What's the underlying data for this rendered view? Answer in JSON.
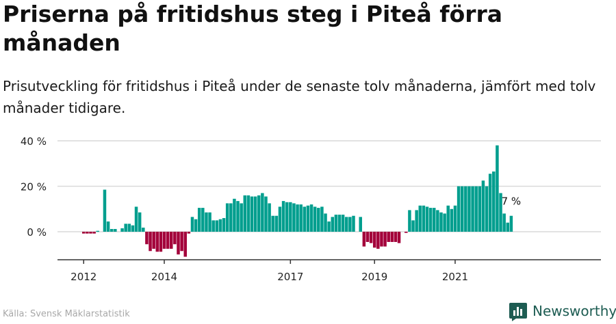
{
  "title": "Priserna på fritidshus steg i Piteå förra månaden",
  "subtitle": "Prisutveckling för fritidshus i Piteå under de senaste tolv månaderna, jämfört med tolv månader tidigare.",
  "source": "Källa: Svensk Mäklarstatistik",
  "brand": {
    "name": "Newsworthy",
    "logo_icon": "newsworthy-bar-chart-icon"
  },
  "colors": {
    "positive": "#009e8e",
    "negative": "#a3003a",
    "grid": "#d9d9d9",
    "axis": "#333333",
    "brand": "#1d5c52"
  },
  "chart_data": {
    "type": "bar",
    "ylim": [
      -12,
      40
    ],
    "yticks": [
      0,
      20,
      40
    ],
    "ytick_labels": [
      "0 %",
      "20 %",
      "40 %"
    ],
    "xtick_labels": [
      "2012",
      "2014",
      "2017",
      "2019",
      "2021"
    ],
    "xtick_indices": [
      0,
      23,
      59,
      83,
      106
    ],
    "last_value_label": "7 %",
    "grid": true,
    "series": [
      {
        "values": [
          -0.8,
          -0.8,
          -0.8,
          -0.8,
          0.4,
          0,
          18.5,
          4.5,
          1.2,
          1.2,
          0,
          1.5,
          3.5,
          3.5,
          2.8,
          11,
          8.5,
          1.8,
          -5.5,
          -8.5,
          -7.5,
          -8.8,
          -8.8,
          -7.5,
          -7.5,
          -7.5,
          -5.5,
          -10,
          -8.5,
          -11,
          -0.8,
          6.5,
          5.5,
          10.5,
          10.5,
          8.5,
          8.5,
          5,
          5,
          5.5,
          6,
          12.5,
          12.5,
          14.5,
          13.5,
          12.5,
          16,
          16,
          15.5,
          15.5,
          16,
          17,
          15.5,
          12.5,
          7,
          7,
          11,
          13.5,
          13,
          13,
          12.5,
          12,
          12,
          11,
          11.5,
          12,
          11,
          10.5,
          11,
          8,
          4.5,
          6.5,
          7.5,
          7.5,
          7.5,
          6.5,
          6.5,
          7,
          0,
          6.5,
          -6.5,
          -4.5,
          -5,
          -7,
          -7.5,
          -6.5,
          -6.5,
          -4.5,
          -4.5,
          -4.5,
          -5,
          0,
          -0.5,
          9.5,
          5,
          9.5,
          11.5,
          11.5,
          11,
          10.5,
          10.5,
          9.5,
          8.5,
          8,
          11.5,
          10,
          11.5,
          20,
          20,
          20,
          20,
          20,
          20,
          20,
          22.5,
          20,
          25.5,
          26.5,
          38,
          17,
          8,
          4,
          7
        ]
      }
    ]
  }
}
